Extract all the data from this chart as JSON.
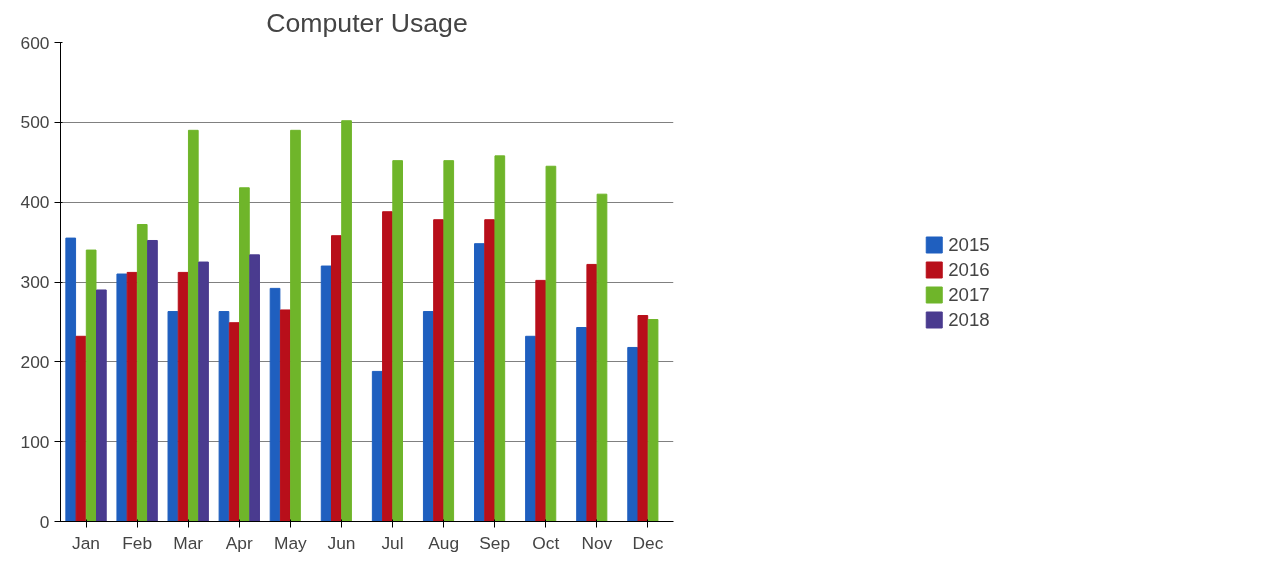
{
  "chart_data": {
    "type": "bar",
    "title": "Computer Usage",
    "categories": [
      "Jan",
      "Feb",
      "Mar",
      "Apr",
      "May",
      "Jun",
      "Jul",
      "Aug",
      "Sep",
      "Oct",
      "Nov",
      "Dec"
    ],
    "series": [
      {
        "name": "2015",
        "color": "#1f5fbf",
        "values": [
          355,
          310,
          263,
          263,
          292,
          320,
          188,
          263,
          348,
          232,
          243,
          218
        ]
      },
      {
        "name": "2016",
        "color": "#b80f1a",
        "values": [
          232,
          312,
          312,
          249,
          265,
          358,
          388,
          378,
          378,
          302,
          322,
          258
        ]
      },
      {
        "name": "2017",
        "color": "#6fb52a",
        "values": [
          340,
          372,
          490,
          418,
          490,
          502,
          452,
          452,
          458,
          445,
          410,
          253
        ]
      },
      {
        "name": "2018",
        "color": "#4a3b8f",
        "values": [
          290,
          352,
          325,
          334,
          null,
          null,
          null,
          null,
          null,
          null,
          null,
          null
        ]
      }
    ],
    "ylim": [
      0,
      600
    ],
    "yticks": [
      0,
      100,
      200,
      300,
      400,
      500,
      600
    ],
    "grid": "y",
    "legend": "right"
  }
}
